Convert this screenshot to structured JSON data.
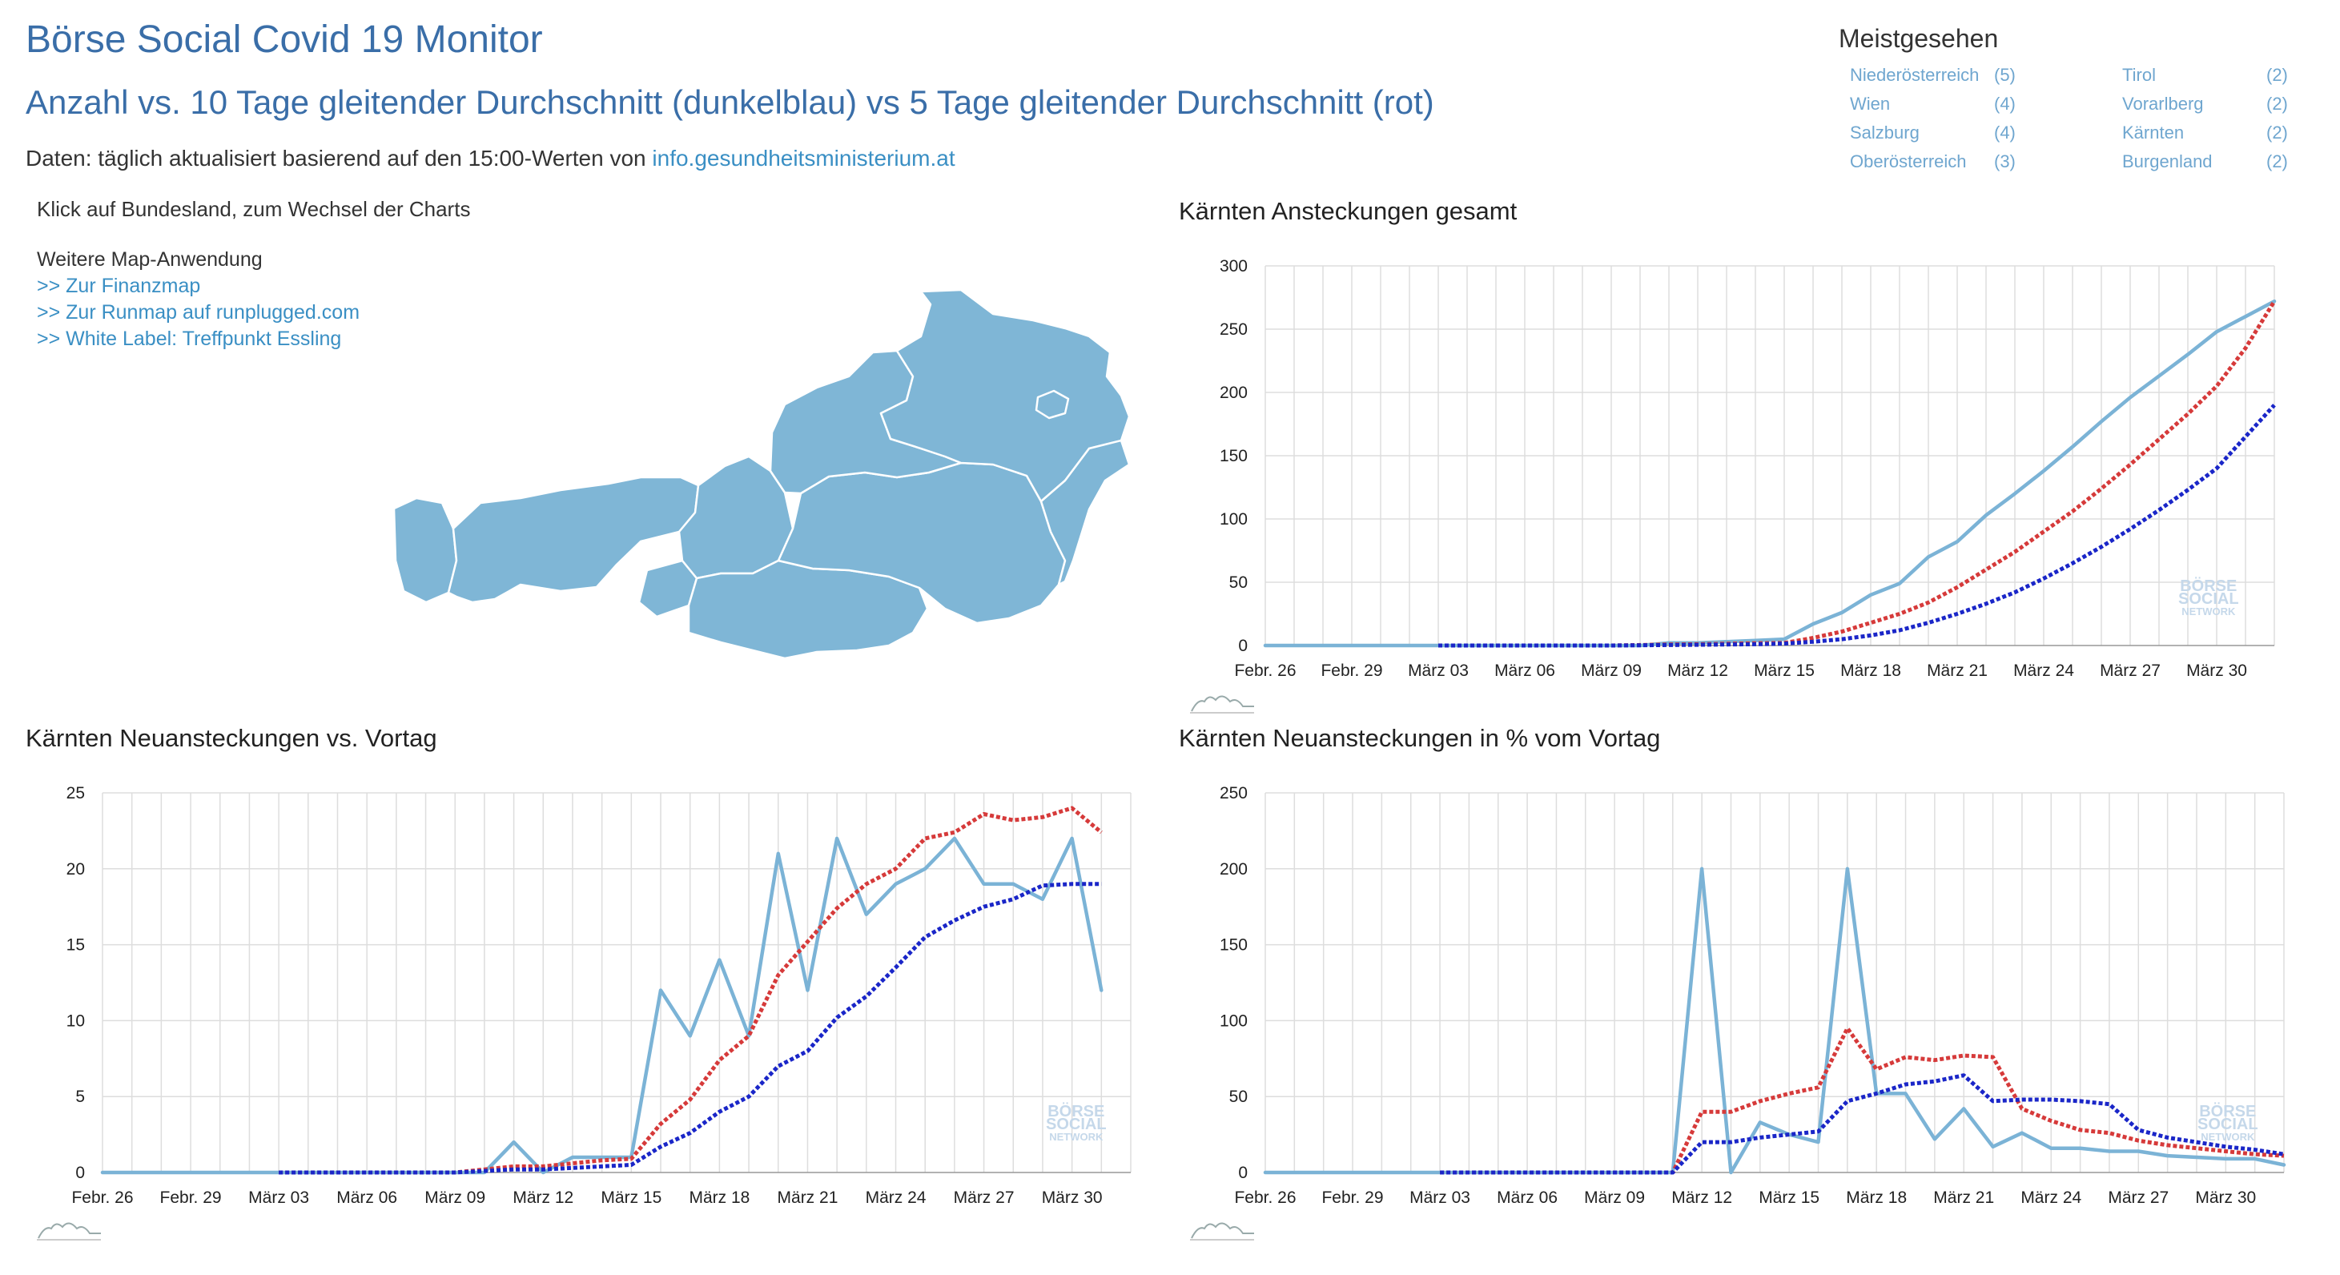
{
  "header": {
    "title": "Börse Social Covid 19 Monitor",
    "subtitle": "Anzahl vs. 10 Tage gleitender Durchschnitt (dunkelblau) vs 5 Tage gleitender Durchschnitt (rot)",
    "daten_prefix": "Daten: täglich aktualisiert basierend auf den 15:00-Werten von ",
    "daten_link": "info.gesundheitsministerium.at"
  },
  "meistgesehen": {
    "title": "Meistgesehen",
    "items": [
      {
        "name": "Niederösterreich",
        "count": "(5)"
      },
      {
        "name": "Tirol",
        "count": "(2)"
      },
      {
        "name": "Wien",
        "count": "(4)"
      },
      {
        "name": "Vorarlberg",
        "count": "(2)"
      },
      {
        "name": "Salzburg",
        "count": "(4)"
      },
      {
        "name": "Kärnten",
        "count": "(2)"
      },
      {
        "name": "Oberösterreich",
        "count": "(3)"
      },
      {
        "name": "Burgenland",
        "count": "(2)"
      }
    ]
  },
  "map_panel": {
    "intro": "Klick auf Bundesland, zum Wechsel der Charts",
    "links_label": "Weitere Map-Anwendung",
    "links": [
      ">> Zur Finanzmap",
      ">> Zur Runmap auf runplugged.com",
      ">> White Label: Treffpunkt Essling"
    ]
  },
  "watermark": [
    "BÖRSE",
    "SOCIAL",
    "NETWORK"
  ],
  "colors": {
    "actual": "#7bb3d6",
    "avg10": "#1a26c8",
    "avg5": "#d63a3a",
    "grid": "#dddddd",
    "map_fill": "#7fb6d6"
  },
  "chart_data": [
    {
      "id": "gesamt",
      "type": "line",
      "title": "Kärnten Ansteckungen gesamt",
      "x": [
        "Febr. 26",
        "Febr. 27",
        "Febr. 28",
        "Febr. 29",
        "März 01",
        "März 02",
        "März 03",
        "März 04",
        "März 05",
        "März 06",
        "März 07",
        "März 08",
        "März 09",
        "März 10",
        "März 11",
        "März 12",
        "März 13",
        "März 14",
        "März 15",
        "März 16",
        "März 17",
        "März 18",
        "März 19",
        "März 20",
        "März 21",
        "März 22",
        "März 23",
        "März 24",
        "März 25",
        "März 26",
        "März 27",
        "März 28",
        "März 29",
        "März 30",
        "März 31",
        "April 01"
      ],
      "xticks": [
        "Febr. 26",
        "Febr. 29",
        "März 03",
        "März 06",
        "März 09",
        "März 12",
        "März 15",
        "März 18",
        "März 21",
        "März 24",
        "März 27",
        "März 30"
      ],
      "ylim": [
        0,
        300
      ],
      "yticks": [
        0,
        50,
        100,
        150,
        200,
        250,
        300
      ],
      "series": [
        {
          "key": "actual",
          "values": [
            0,
            0,
            0,
            0,
            0,
            0,
            0,
            0,
            0,
            0,
            0,
            0,
            0,
            0,
            2,
            2,
            3,
            4,
            5,
            17,
            26,
            40,
            49,
            70,
            82,
            103,
            120,
            138,
            157,
            177,
            196,
            213,
            230,
            248,
            260,
            272
          ],
          "dashed": false
        },
        {
          "key": "avg5",
          "values": [
            null,
            null,
            null,
            null,
            null,
            null,
            0,
            0,
            0,
            0,
            0,
            0,
            0,
            0.4,
            0.8,
            1,
            1.4,
            1.8,
            2,
            6,
            11,
            18,
            25,
            34,
            46,
            60,
            74,
            90,
            106,
            124,
            143,
            163,
            183,
            205,
            235,
            272
          ],
          "dashed": true
        },
        {
          "key": "avg10",
          "values": [
            null,
            null,
            null,
            null,
            null,
            null,
            0,
            0,
            0,
            0,
            0,
            0,
            0,
            0.2,
            0.4,
            0.6,
            0.8,
            1,
            1.5,
            3,
            5,
            8,
            12,
            18,
            25,
            33,
            42,
            53,
            65,
            78,
            92,
            107,
            123,
            140,
            165,
            190
          ],
          "dashed": true
        }
      ]
    },
    {
      "id": "neu",
      "type": "line",
      "title": "Kärnten Neuansteckungen vs. Vortag",
      "x": [
        "Febr. 26",
        "Febr. 27",
        "Febr. 28",
        "Febr. 29",
        "März 01",
        "März 02",
        "März 03",
        "März 04",
        "März 05",
        "März 06",
        "März 07",
        "März 08",
        "März 09",
        "März 10",
        "März 11",
        "März 12",
        "März 13",
        "März 14",
        "März 15",
        "März 16",
        "März 17",
        "März 18",
        "März 19",
        "März 20",
        "März 21",
        "März 22",
        "März 23",
        "März 24",
        "März 25",
        "März 26",
        "März 27",
        "März 28",
        "März 29",
        "März 30",
        "März 31",
        "April 01"
      ],
      "xticks": [
        "Febr. 26",
        "Febr. 29",
        "März 03",
        "März 06",
        "März 09",
        "März 12",
        "März 15",
        "März 18",
        "März 21",
        "März 24",
        "März 27",
        "März 30"
      ],
      "ylim": [
        0,
        25
      ],
      "yticks": [
        0,
        5,
        10,
        15,
        20,
        25
      ],
      "series": [
        {
          "key": "actual",
          "values": [
            0,
            0,
            0,
            0,
            0,
            0,
            0,
            0,
            0,
            0,
            0,
            0,
            0,
            0,
            2,
            0,
            1,
            1,
            1,
            12,
            9,
            14,
            9,
            21,
            12,
            22,
            17,
            19,
            20,
            22,
            19,
            19,
            18,
            22,
            12,
            null
          ],
          "dashed": false
        },
        {
          "key": "avg5",
          "values": [
            null,
            null,
            null,
            null,
            null,
            null,
            0,
            0,
            0,
            0,
            0,
            0,
            0,
            0.2,
            0.4,
            0.4,
            0.6,
            0.8,
            0.9,
            3.2,
            4.8,
            7.4,
            9,
            13,
            15.2,
            17.4,
            19,
            20,
            22,
            22.4,
            23.6,
            23.2,
            23.4,
            24,
            22.4,
            null
          ],
          "dashed": true
        },
        {
          "key": "avg10",
          "values": [
            null,
            null,
            null,
            null,
            null,
            null,
            0,
            0,
            0,
            0,
            0,
            0,
            0,
            0.1,
            0.2,
            0.2,
            0.3,
            0.4,
            0.5,
            1.7,
            2.6,
            4,
            5,
            7,
            8,
            10.2,
            11.6,
            13.5,
            15.5,
            16.6,
            17.5,
            18,
            18.9,
            19,
            19,
            null
          ],
          "dashed": true
        }
      ]
    },
    {
      "id": "prozent",
      "type": "line",
      "title": "Kärnten Neuansteckungen in % vom Vortag",
      "x": [
        "Febr. 26",
        "Febr. 27",
        "Febr. 28",
        "Febr. 29",
        "März 01",
        "März 02",
        "März 03",
        "März 04",
        "März 05",
        "März 06",
        "März 07",
        "März 08",
        "März 09",
        "März 10",
        "März 11",
        "März 12",
        "März 13",
        "März 14",
        "März 15",
        "März 16",
        "März 17",
        "März 18",
        "März 19",
        "März 20",
        "März 21",
        "März 22",
        "März 23",
        "März 24",
        "März 25",
        "März 26",
        "März 27",
        "März 28",
        "März 29",
        "März 30",
        "März 31",
        "April 01"
      ],
      "xticks": [
        "Febr. 26",
        "Febr. 29",
        "März 03",
        "März 06",
        "März 09",
        "März 12",
        "März 15",
        "März 18",
        "März 21",
        "März 24",
        "März 27",
        "März 30"
      ],
      "ylim": [
        0,
        250
      ],
      "yticks": [
        0,
        50,
        100,
        150,
        200,
        250
      ],
      "series": [
        {
          "key": "actual",
          "values": [
            0,
            0,
            0,
            0,
            0,
            0,
            0,
            0,
            0,
            0,
            0,
            0,
            0,
            0,
            0,
            200,
            0,
            33,
            25,
            20,
            200,
            52,
            52,
            22,
            42,
            17,
            26,
            16,
            16,
            14,
            14,
            11,
            10,
            9,
            9,
            5
          ],
          "dashed": false
        },
        {
          "key": "avg5",
          "values": [
            null,
            null,
            null,
            null,
            null,
            null,
            0,
            0,
            0,
            0,
            0,
            0,
            0,
            0,
            0,
            40,
            40,
            47,
            52,
            56,
            95,
            68,
            76,
            74,
            77,
            76,
            42,
            34,
            28,
            26,
            21,
            18,
            16,
            14,
            12,
            11
          ],
          "dashed": true
        },
        {
          "key": "avg10",
          "values": [
            null,
            null,
            null,
            null,
            null,
            null,
            0,
            0,
            0,
            0,
            0,
            0,
            0,
            0,
            0,
            20,
            20,
            23,
            25,
            27,
            47,
            52,
            58,
            60,
            64,
            47,
            48,
            48,
            47,
            45,
            28,
            23,
            20,
            17,
            15,
            12
          ],
          "dashed": true
        }
      ]
    }
  ]
}
